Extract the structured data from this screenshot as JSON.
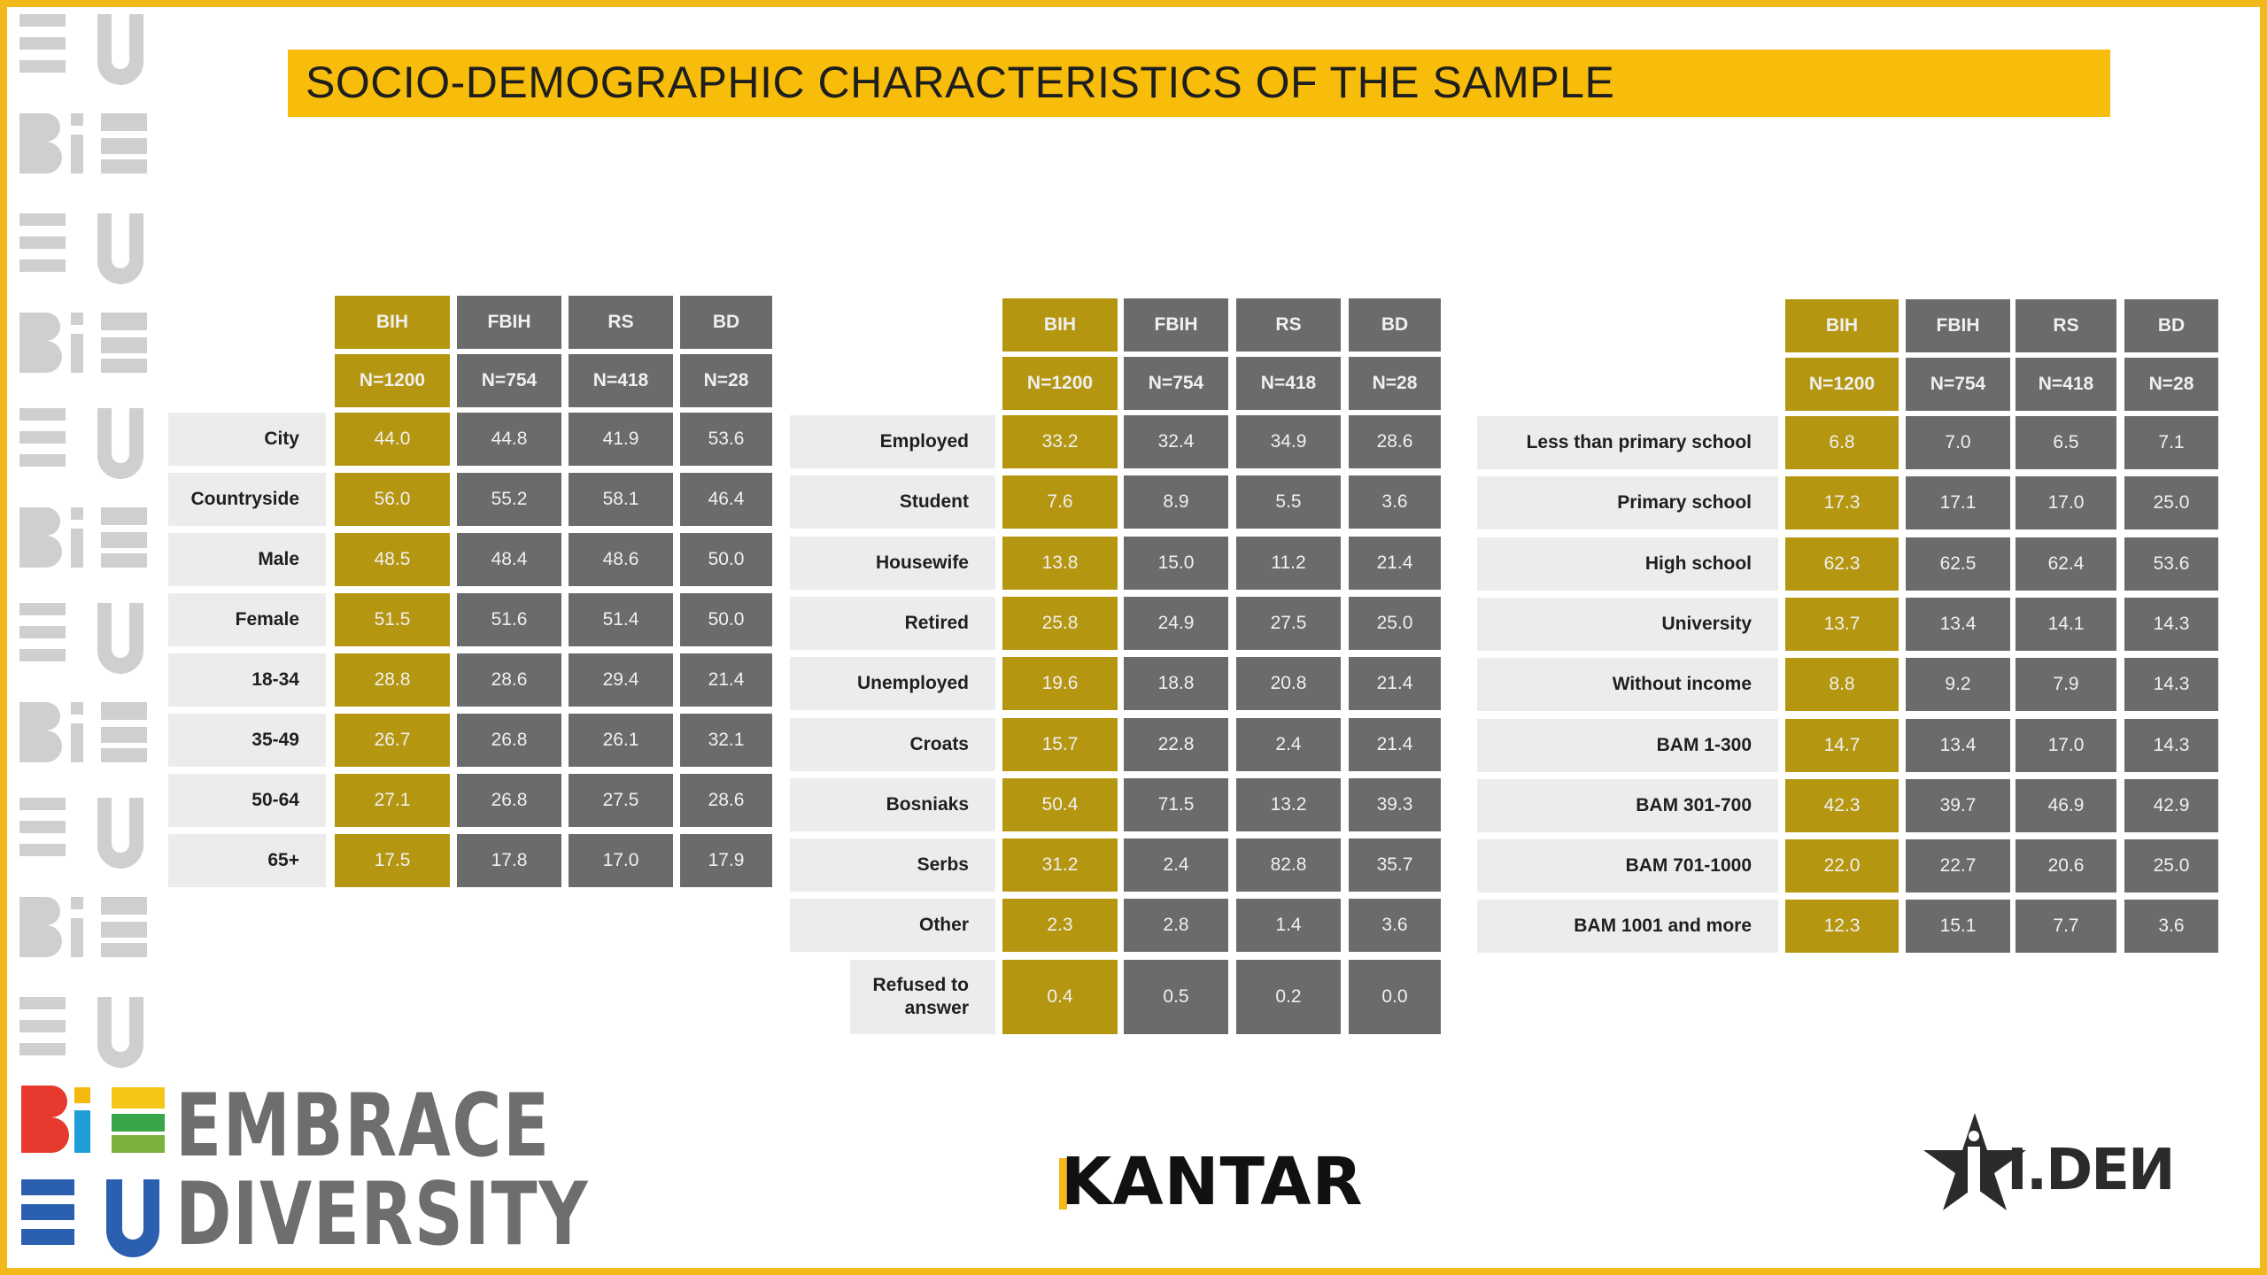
{
  "title": "SOCIO-DEMOGRAPHIC CHARACTERISTICS OF THE SAMPLE",
  "colors": {
    "accent": "#f8bd0a",
    "gold_cell": "#b59610",
    "grey_cell": "#6b6b6b",
    "label_bg": "#ececec"
  },
  "columns": [
    "BIH",
    "FBIH",
    "RS",
    "BD"
  ],
  "sample_sizes": [
    "N=1200",
    "N=754",
    "N=418",
    "N=28"
  ],
  "tables": [
    {
      "rows": [
        {
          "label": "City",
          "values": [
            "44.0",
            "44.8",
            "41.9",
            "53.6"
          ]
        },
        {
          "label": "Countryside",
          "values": [
            "56.0",
            "55.2",
            "58.1",
            "46.4"
          ]
        },
        {
          "label": "Male",
          "values": [
            "48.5",
            "48.4",
            "48.6",
            "50.0"
          ]
        },
        {
          "label": "Female",
          "values": [
            "51.5",
            "51.6",
            "51.4",
            "50.0"
          ]
        },
        {
          "label": "18-34",
          "values": [
            "28.8",
            "28.6",
            "29.4",
            "21.4"
          ]
        },
        {
          "label": "35-49",
          "values": [
            "26.7",
            "26.8",
            "26.1",
            "32.1"
          ]
        },
        {
          "label": "50-64",
          "values": [
            "27.1",
            "26.8",
            "27.5",
            "28.6"
          ]
        },
        {
          "label": "65+",
          "values": [
            "17.5",
            "17.8",
            "17.0",
            "17.9"
          ]
        }
      ]
    },
    {
      "rows": [
        {
          "label": "Employed",
          "values": [
            "33.2",
            "32.4",
            "34.9",
            "28.6"
          ]
        },
        {
          "label": "Student",
          "values": [
            "7.6",
            "8.9",
            "5.5",
            "3.6"
          ]
        },
        {
          "label": "Housewife",
          "values": [
            "13.8",
            "15.0",
            "11.2",
            "21.4"
          ]
        },
        {
          "label": "Retired",
          "values": [
            "25.8",
            "24.9",
            "27.5",
            "25.0"
          ]
        },
        {
          "label": "Unemployed",
          "values": [
            "19.6",
            "18.8",
            "20.8",
            "21.4"
          ]
        },
        {
          "label": "Croats",
          "values": [
            "15.7",
            "22.8",
            "2.4",
            "21.4"
          ]
        },
        {
          "label": "Bosniaks",
          "values": [
            "50.4",
            "71.5",
            "13.2",
            "39.3"
          ]
        },
        {
          "label": "Serbs",
          "values": [
            "31.2",
            "2.4",
            "82.8",
            "35.7"
          ]
        },
        {
          "label": "Other",
          "values": [
            "2.3",
            "2.8",
            "1.4",
            "3.6"
          ]
        },
        {
          "label": "Refused to answer",
          "values": [
            "0.4",
            "0.5",
            "0.2",
            "0.0"
          ]
        }
      ]
    },
    {
      "rows": [
        {
          "label": "Less than primary school",
          "values": [
            "6.8",
            "7.0",
            "6.5",
            "7.1"
          ]
        },
        {
          "label": "Primary school",
          "values": [
            "17.3",
            "17.1",
            "17.0",
            "25.0"
          ]
        },
        {
          "label": "High school",
          "values": [
            "62.3",
            "62.5",
            "62.4",
            "53.6"
          ]
        },
        {
          "label": "University",
          "values": [
            "13.7",
            "13.4",
            "14.1",
            "14.3"
          ]
        },
        {
          "label": "Without income",
          "values": [
            "8.8",
            "9.2",
            "7.9",
            "14.3"
          ]
        },
        {
          "label": "BAM 1-300",
          "values": [
            "14.7",
            "13.4",
            "17.0",
            "14.3"
          ]
        },
        {
          "label": "BAM 301-700",
          "values": [
            "42.3",
            "39.7",
            "46.9",
            "42.9"
          ]
        },
        {
          "label": "BAM 701-1000",
          "values": [
            "22.0",
            "22.7",
            "20.6",
            "25.0"
          ]
        },
        {
          "label": "BAM 1001 and more",
          "values": [
            "12.3",
            "15.1",
            "7.7",
            "3.6"
          ]
        }
      ]
    }
  ],
  "logos": {
    "embrace_line1": "EMBRACE",
    "embrace_line2": "DIVERSITY",
    "kantar": "KANTAR",
    "ideni": "I.DEИ"
  }
}
